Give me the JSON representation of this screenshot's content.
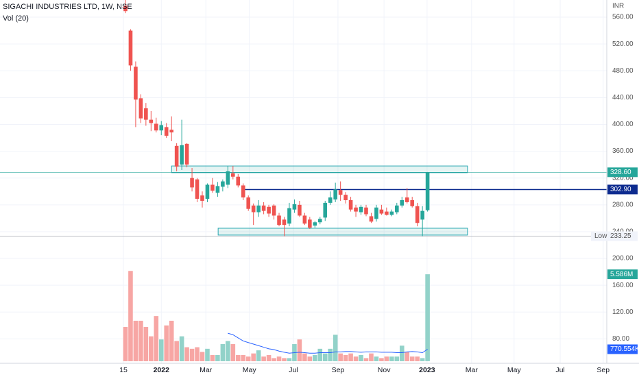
{
  "header": {
    "title": "SIGACHI INDUSTRIES LTD, 1W, NSE",
    "currency": "INR"
  },
  "chart_data": {
    "type": "candlestick",
    "up_color": "#26a69a",
    "down_color": "#ef5350",
    "ohlc": [
      [
        577,
        590,
        566,
        569
      ],
      [
        540,
        542,
        480,
        488
      ],
      [
        486,
        494,
        396,
        437
      ],
      [
        439,
        445,
        402,
        409
      ],
      [
        424,
        432,
        398,
        407
      ],
      [
        407,
        420,
        390,
        402
      ],
      [
        401,
        410,
        388,
        391
      ],
      [
        391,
        405,
        384,
        399
      ],
      [
        396,
        402,
        380,
        383
      ],
      [
        392,
        412,
        375,
        388
      ],
      [
        368,
        372,
        330,
        337
      ],
      [
        340,
        407,
        332,
        369
      ],
      [
        371,
        372,
        336,
        340
      ],
      [
        320,
        335,
        300,
        306
      ],
      [
        318,
        320,
        284,
        289
      ],
      [
        294,
        300,
        276,
        286
      ],
      [
        289,
        312,
        284,
        310
      ],
      [
        310,
        320,
        298,
        301
      ],
      [
        298,
        314,
        292,
        308
      ],
      [
        307,
        318,
        300,
        315
      ],
      [
        310,
        338,
        305,
        330
      ],
      [
        327,
        338,
        318,
        322
      ],
      [
        322,
        326,
        306,
        309
      ],
      [
        309,
        312,
        287,
        291
      ],
      [
        291,
        294,
        271,
        274
      ],
      [
        279,
        282,
        250,
        269
      ],
      [
        269,
        287,
        262,
        279
      ],
      [
        279,
        284,
        266,
        271
      ],
      [
        277,
        280,
        262,
        267
      ],
      [
        279,
        281,
        258,
        264
      ],
      [
        264,
        268,
        248,
        250
      ],
      [
        258,
        262,
        233.25,
        250
      ],
      [
        252,
        283,
        248,
        275
      ],
      [
        273,
        288,
        268,
        281
      ],
      [
        280,
        286,
        262,
        264
      ],
      [
        264,
        268,
        250,
        252
      ],
      [
        258,
        262,
        244,
        246
      ],
      [
        249,
        256,
        246,
        254
      ],
      [
        254,
        262,
        251,
        259
      ],
      [
        261,
        286,
        256,
        283
      ],
      [
        283,
        300,
        280,
        291
      ],
      [
        288,
        313,
        284,
        303
      ],
      [
        302,
        315,
        286,
        295
      ],
      [
        295,
        299,
        282,
        287
      ],
      [
        287,
        292,
        270,
        273
      ],
      [
        276,
        280,
        262,
        270
      ],
      [
        269,
        280,
        265,
        277
      ],
      [
        276,
        280,
        263,
        266
      ],
      [
        263,
        268,
        253,
        255
      ],
      [
        259,
        280,
        255,
        276
      ],
      [
        273,
        280,
        265,
        267
      ],
      [
        270,
        276,
        264,
        265
      ],
      [
        265,
        273,
        263,
        270
      ],
      [
        269,
        283,
        266,
        279
      ],
      [
        279,
        292,
        276,
        287
      ],
      [
        291,
        305,
        282,
        284
      ],
      [
        287,
        292,
        276,
        278
      ],
      [
        278,
        283,
        248,
        253
      ],
      [
        258,
        278,
        233.25,
        271
      ],
      [
        272,
        329,
        270,
        328.6
      ]
    ],
    "volume": [
      2.2,
      5.8,
      2.6,
      2.6,
      2.2,
      1.6,
      2.9,
      1.4,
      2.3,
      2.6,
      1.3,
      1.6,
      0.9,
      0.8,
      0.9,
      0.6,
      0.8,
      0.4,
      0.4,
      1.1,
      1.3,
      1.1,
      0.4,
      0.4,
      0.3,
      0.5,
      0.7,
      0.3,
      0.4,
      0.2,
      0.3,
      0.2,
      0.2,
      1.1,
      1.4,
      0.5,
      0.3,
      0.4,
      0.8,
      0.5,
      0.8,
      1.7,
      0.5,
      0.4,
      0.5,
      0.3,
      0.4,
      0.2,
      0.5,
      0.3,
      0.2,
      0.3,
      0.3,
      0.3,
      1.0,
      0.6,
      0.3,
      0.3,
      0.2,
      5.586
    ],
    "volume_label": "5.586M",
    "volume_up_color": "#92d2c9",
    "volume_down_color": "#f7a6a4",
    "volume_ma": {
      "name": "Vol (20)",
      "color": "#2962ff",
      "last_label": "770.554K",
      "values": [
        null,
        null,
        null,
        null,
        null,
        null,
        null,
        null,
        null,
        null,
        null,
        null,
        null,
        null,
        null,
        null,
        null,
        null,
        null,
        null,
        1.8,
        1.7,
        1.5,
        1.3,
        1.2,
        1.1,
        1.0,
        0.9,
        0.8,
        0.75,
        0.65,
        0.58,
        0.52,
        0.55,
        0.58,
        0.55,
        0.52,
        0.52,
        0.55,
        0.55,
        0.55,
        0.6,
        0.6,
        0.62,
        0.62,
        0.6,
        0.58,
        0.6,
        0.6,
        0.6,
        0.58,
        0.58,
        0.58,
        0.55,
        0.55,
        0.6,
        0.62,
        0.6,
        0.55,
        0.770554
      ]
    },
    "volume_ylim": [
      0,
      23.2
    ],
    "xlim": [
      -24.5,
      94
    ],
    "xticks": [
      {
        "value": -0.4,
        "label": "15"
      },
      {
        "value": 7,
        "label": "2022"
      },
      {
        "value": 15.7,
        "label": "Mar"
      },
      {
        "value": 24.2,
        "label": "May"
      },
      {
        "value": 32.8,
        "label": "Jul"
      },
      {
        "value": 41.5,
        "label": "Sep"
      },
      {
        "value": 50.5,
        "label": "Nov"
      },
      {
        "value": 58.9,
        "label": "2023"
      },
      {
        "value": 67.6,
        "label": "Mar"
      },
      {
        "value": 75.9,
        "label": "May"
      },
      {
        "value": 84.9,
        "label": "Jul"
      },
      {
        "value": 93.3,
        "label": "Sep"
      }
    ],
    "ylim": [
      43.6,
      585.6
    ],
    "yticks": [
      {
        "value": 560,
        "label": "560.00"
      },
      {
        "value": 520,
        "label": "520.00"
      },
      {
        "value": 480,
        "label": "480.00"
      },
      {
        "value": 440,
        "label": "440.00"
      },
      {
        "value": 400,
        "label": "400.00"
      },
      {
        "value": 360,
        "label": "360.00"
      },
      {
        "value": 320,
        "label": "320.00"
      },
      {
        "value": 280,
        "label": "280.00"
      },
      {
        "value": 240,
        "label": "240.00"
      },
      {
        "value": 200,
        "label": "200.00"
      },
      {
        "value": 160,
        "label": "160.00"
      },
      {
        "value": 120,
        "label": "120.00"
      },
      {
        "value": 80,
        "label": "80.00"
      }
    ],
    "grid": true,
    "boxes": [
      {
        "x": [
          9,
          66.8
        ],
        "y": [
          328,
          338
        ]
      },
      {
        "x": [
          18.1,
          66.8
        ],
        "y": [
          234.9,
          245.1
        ]
      }
    ],
    "price_lines": [
      {
        "value": 328.6,
        "label": "328.60",
        "color": "#26a69a",
        "from": -24.5
      },
      {
        "value": 302.9,
        "label": "302.90",
        "color": "#0d2b8f",
        "from": 23.1
      }
    ],
    "low": {
      "value": 233.25,
      "label": "233.25",
      "tag": "Low"
    }
  }
}
